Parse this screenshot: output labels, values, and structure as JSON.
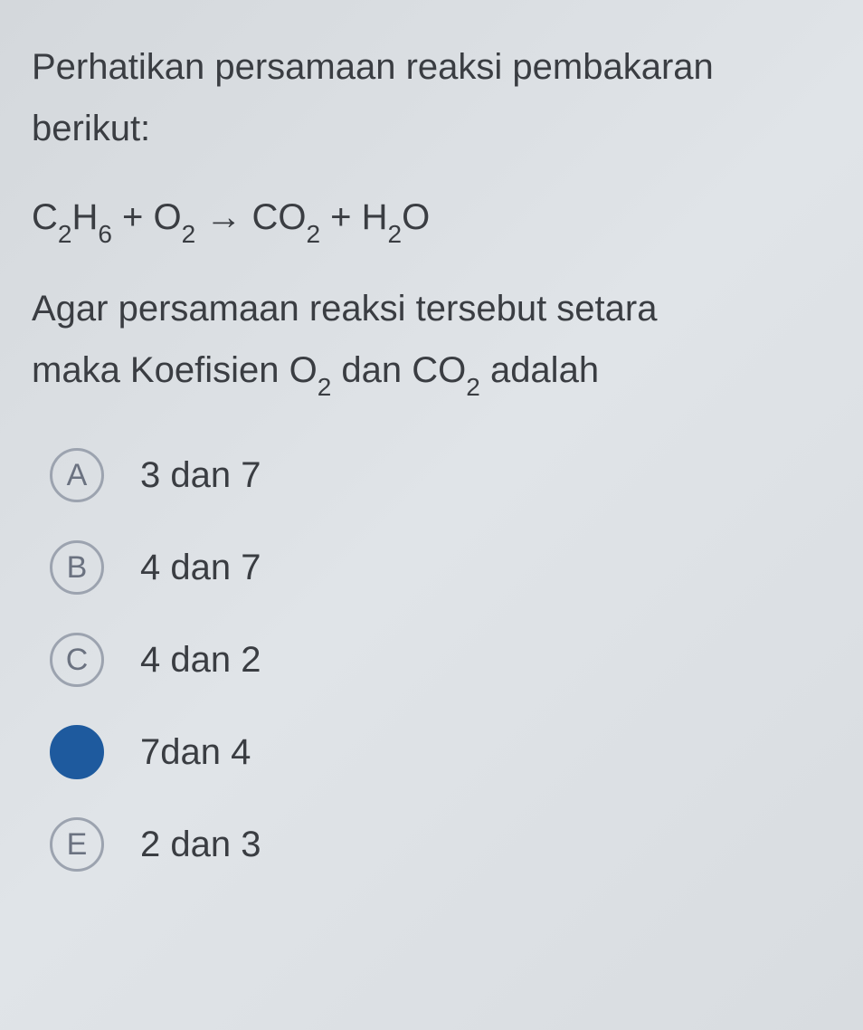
{
  "question": {
    "intro_line1": "Perhatikan persamaan reaksi pembakaran",
    "intro_line2": "berikut:",
    "equation_parts": {
      "c2h6": "C",
      "sub2_1": "2",
      "h6": "H",
      "sub6": "6",
      "plus1": " + O",
      "sub2_2": "2",
      "arrow": "  →  CO",
      "sub2_3": "2",
      "plus2": " + H",
      "sub2_4": "2",
      "o": "O"
    },
    "ask_line1": "Agar persamaan reaksi tersebut setara",
    "ask_line2_part1": "maka Koefisien O",
    "ask_line2_sub1": "2",
    "ask_line2_part2": " dan CO",
    "ask_line2_sub2": "2",
    "ask_line2_part3": " adalah"
  },
  "options": [
    {
      "letter": "A",
      "text": "3 dan 7",
      "selected": false
    },
    {
      "letter": "B",
      "text": "4 dan 7",
      "selected": false
    },
    {
      "letter": "C",
      "text": "4 dan 2",
      "selected": false
    },
    {
      "letter": "",
      "text": "7dan 4",
      "selected": true
    },
    {
      "letter": "E",
      "text": "2 dan 3",
      "selected": false
    }
  ],
  "colors": {
    "text": "#3a3d42",
    "circle_border": "#9ca3af",
    "circle_text": "#6b7280",
    "selected_bg": "#1e5a9e",
    "background": "#dce0e4"
  }
}
